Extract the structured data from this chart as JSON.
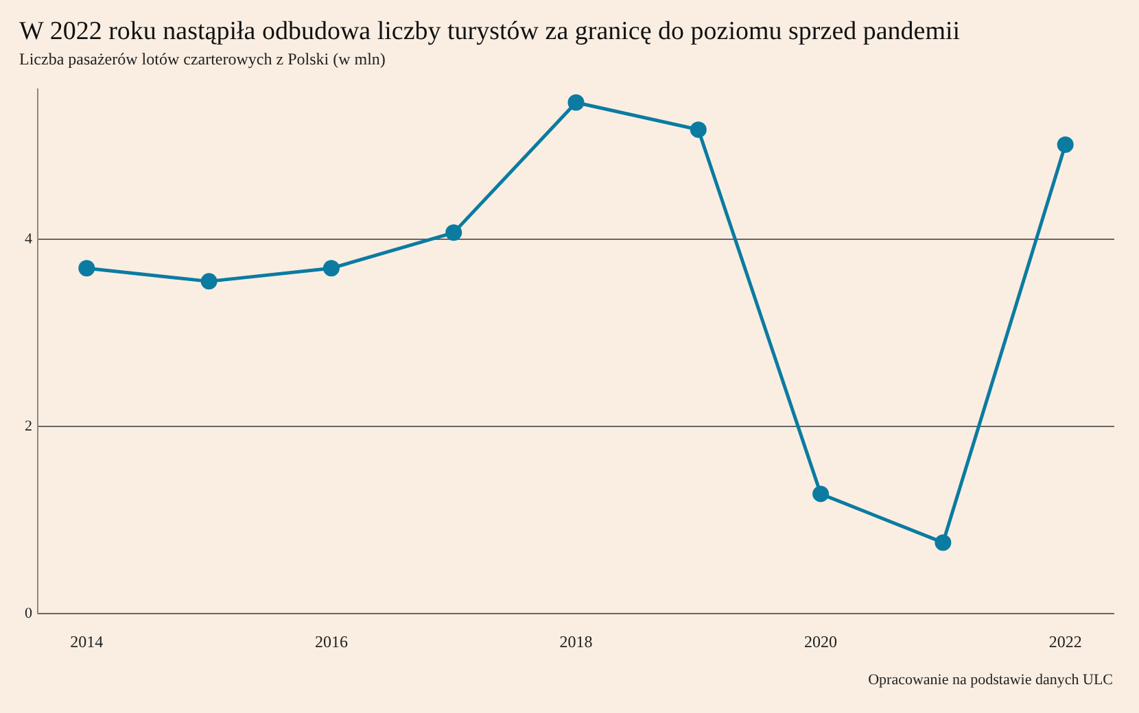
{
  "chart_data": {
    "type": "line",
    "title": "W 2022 roku nastąpiła odbudowa liczby turystów za granicę do poziomu sprzed pandemii",
    "subtitle": "Liczba pasażerów lotów czarterowych z Polski (w mln)",
    "x": [
      2014,
      2015,
      2016,
      2017,
      2018,
      2019,
      2020,
      2021,
      2022
    ],
    "series": [
      {
        "color": "#0b7ba1",
        "values": [
          3.69,
          3.55,
          3.69,
          4.07,
          5.46,
          5.17,
          1.28,
          0.76,
          5.01
        ]
      }
    ],
    "xlim": [
      2013.6,
      2022.4
    ],
    "xticks": [
      2014,
      2016,
      2018,
      2020,
      2022
    ],
    "ylim": [
      0,
      5.6
    ],
    "yticks": [
      0,
      2,
      4
    ],
    "grid": "y",
    "legend": false,
    "marker": "circle",
    "line_style": "solid",
    "annotations": [
      "Opracowanie na podstawie danych ULC"
    ]
  }
}
